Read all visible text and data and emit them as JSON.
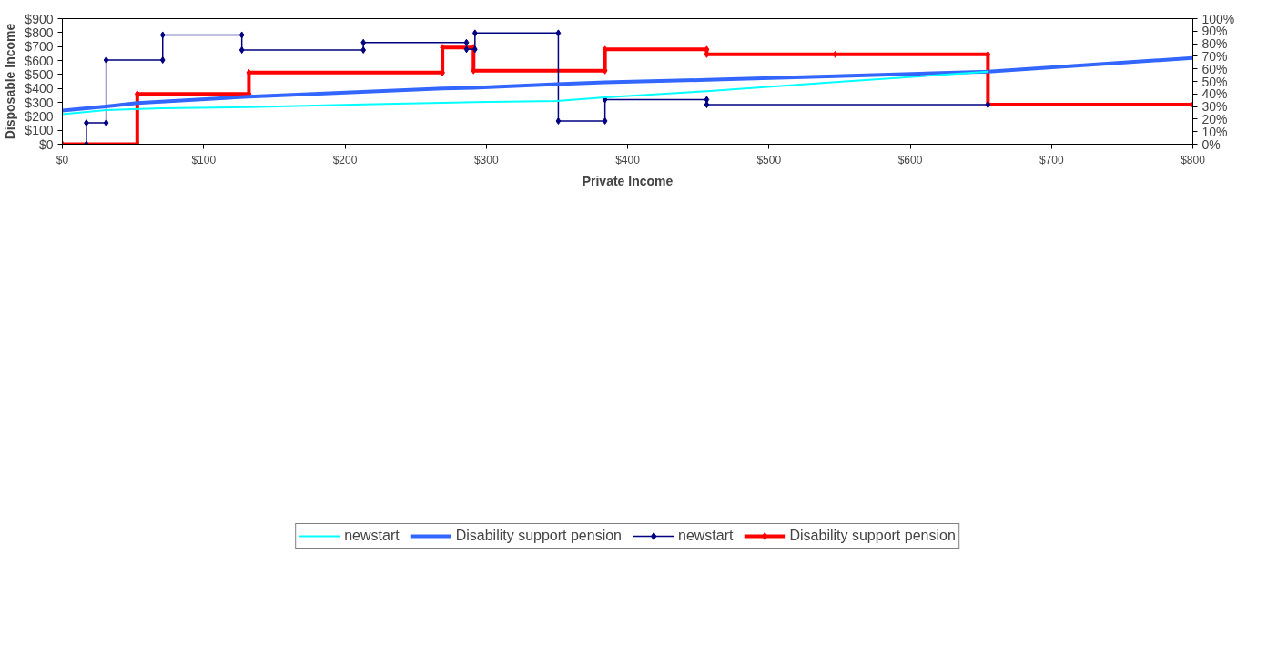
{
  "chart_data": {
    "type": "line",
    "xlabel": "Private Income",
    "ylabel": "Disposable Income",
    "xlim": [
      0,
      800
    ],
    "xticks": [
      {
        "value": 0,
        "label": "$0"
      },
      {
        "value": 100,
        "label": "$100"
      },
      {
        "value": 200,
        "label": "$200"
      },
      {
        "value": 300,
        "label": "$300"
      },
      {
        "value": 400,
        "label": "$400"
      },
      {
        "value": 500,
        "label": "$500"
      },
      {
        "value": 600,
        "label": "$600"
      },
      {
        "value": 700,
        "label": "$700"
      },
      {
        "value": 800,
        "label": "$800"
      }
    ],
    "ylim": [
      0,
      900
    ],
    "yticks": [
      {
        "value": 0,
        "label": "$0"
      },
      {
        "value": 100,
        "label": "$100"
      },
      {
        "value": 200,
        "label": "$200"
      },
      {
        "value": 300,
        "label": "$300"
      },
      {
        "value": 400,
        "label": "$400"
      },
      {
        "value": 500,
        "label": "$500"
      },
      {
        "value": 600,
        "label": "$600"
      },
      {
        "value": 700,
        "label": "$700"
      },
      {
        "value": 800,
        "label": "$800"
      },
      {
        "value": 900,
        "label": "$900"
      }
    ],
    "y2lim": [
      0,
      100
    ],
    "y2ticks": [
      {
        "value": 0,
        "label": "0%"
      },
      {
        "value": 10,
        "label": "10%"
      },
      {
        "value": 20,
        "label": "20%"
      },
      {
        "value": 30,
        "label": "30%"
      },
      {
        "value": 40,
        "label": "40%"
      },
      {
        "value": 50,
        "label": "50%"
      },
      {
        "value": 60,
        "label": "60%"
      },
      {
        "value": 70,
        "label": "70%"
      },
      {
        "value": 80,
        "label": "80%"
      },
      {
        "value": 90,
        "label": "90%"
      },
      {
        "value": 100,
        "label": "100%"
      }
    ],
    "grid": false,
    "legend": "bottom",
    "series": [
      {
        "name": "newstart",
        "color": "#00ffff",
        "marker": "none",
        "x": [
          0,
          31,
          70,
          132,
          213,
          269,
          291,
          350,
          384,
          456,
          547,
          655
        ],
        "values": [
          215,
          245,
          257,
          265,
          285,
          297,
          302,
          309,
          336,
          380,
          445,
          520
        ]
      },
      {
        "name": "Disability support pension",
        "color": "#3366ff",
        "marker": "none",
        "x": [
          0,
          31,
          53,
          132,
          269,
          291,
          350,
          384,
          456,
          547,
          655,
          800
        ],
        "values": [
          241,
          270,
          295,
          341,
          400,
          405,
          430,
          444,
          461,
          488,
          520,
          618
        ]
      },
      {
        "name": "newstart",
        "color": "#000080",
        "marker": "diamond",
        "axis": "y2",
        "x": [
          17,
          17,
          31,
          31,
          71,
          71,
          127,
          127,
          213,
          213,
          286,
          286,
          292,
          292,
          351,
          351,
          384,
          384,
          456,
          456,
          655
        ],
        "values": [
          0,
          17,
          17,
          67,
          67,
          87,
          87,
          75,
          75,
          81,
          81,
          75.5,
          75.5,
          88.5,
          88.5,
          18.5,
          18.5,
          35.5,
          35.5,
          31.5,
          31.5
        ]
      },
      {
        "name": "Disability support pension",
        "color": "#ff0000",
        "marker": "diamond",
        "axis": "y2",
        "x": [
          0,
          53,
          53,
          132,
          132,
          269,
          269,
          291,
          291,
          384,
          384,
          456,
          456,
          547,
          655,
          655,
          800
        ],
        "values": [
          0,
          0,
          40,
          40,
          57,
          57,
          77,
          77,
          58.5,
          58.5,
          75.5,
          75.5,
          71.5,
          71.5,
          71.5,
          31.5,
          31.5
        ]
      }
    ]
  }
}
